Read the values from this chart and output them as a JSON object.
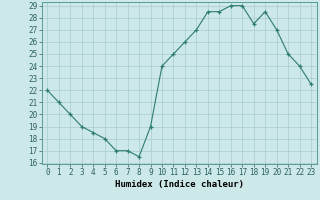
{
  "x": [
    0,
    1,
    2,
    3,
    4,
    5,
    6,
    7,
    8,
    9,
    10,
    11,
    12,
    13,
    14,
    15,
    16,
    17,
    18,
    19,
    20,
    21,
    22,
    23
  ],
  "y": [
    22,
    21,
    20,
    19,
    18.5,
    18,
    17,
    17,
    16.5,
    19,
    24,
    25,
    26,
    27,
    28.5,
    28.5,
    29,
    29,
    27.5,
    28.5,
    27,
    25,
    24,
    22.5
  ],
  "xlabel": "Humidex (Indice chaleur)",
  "ylim": [
    16,
    29
  ],
  "xlim": [
    -0.5,
    23.5
  ],
  "yticks": [
    16,
    17,
    18,
    19,
    20,
    21,
    22,
    23,
    24,
    25,
    26,
    27,
    28,
    29
  ],
  "xticks": [
    0,
    1,
    2,
    3,
    4,
    5,
    6,
    7,
    8,
    9,
    10,
    11,
    12,
    13,
    14,
    15,
    16,
    17,
    18,
    19,
    20,
    21,
    22,
    23
  ],
  "line_color": "#2e7d6e",
  "marker_color": "#2e7d6e",
  "bg_color": "#cce8e8",
  "grid_color": "#aacccc",
  "tick_fontsize": 5.5,
  "xlabel_fontsize": 6.5
}
